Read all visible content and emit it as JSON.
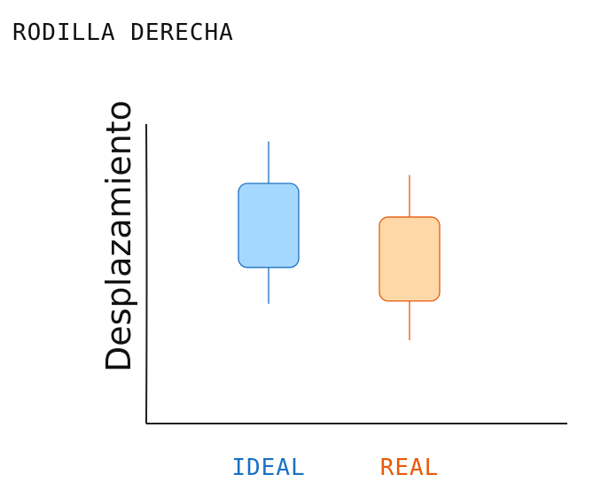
{
  "title": "RODILLA DERECHA",
  "chart_data": {
    "type": "box",
    "ylabel": "Desplazamiento",
    "xlabel": "",
    "ylim": [
      0,
      100
    ],
    "categories": [
      "IDEAL",
      "REAL"
    ],
    "boxes": [
      {
        "label": "IDEAL",
        "whisker_low": 32,
        "q1": 45,
        "q3": 75,
        "whisker_high": 90
      },
      {
        "label": "REAL",
        "whisker_low": 19,
        "q1": 33,
        "q3": 63,
        "whisker_high": 78
      }
    ],
    "colors": {
      "IDEAL": {
        "fill": "#a5d8ff",
        "stroke": "#1971c2"
      },
      "REAL": {
        "fill": "#ffd8a8",
        "stroke": "#e8590c"
      }
    },
    "grid": false,
    "legend": "none"
  }
}
